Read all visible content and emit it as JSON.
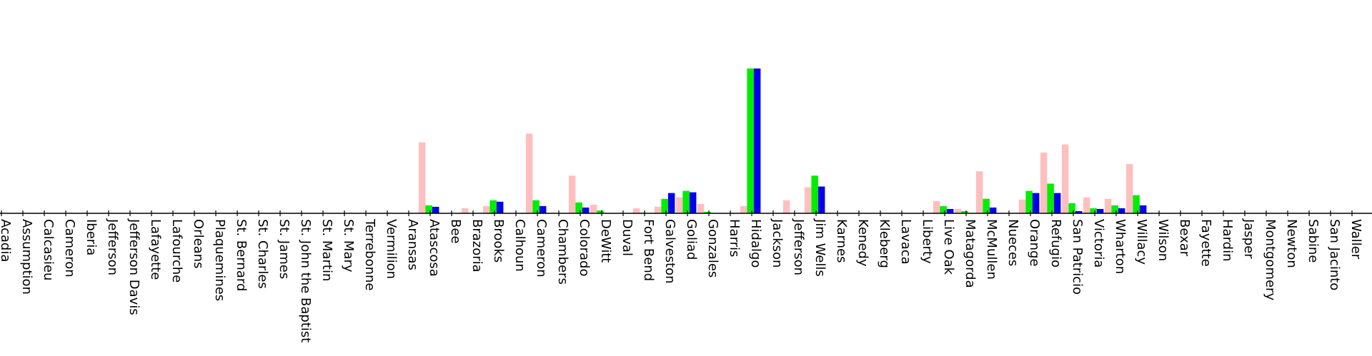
{
  "chart_data": {
    "type": "bar",
    "title": "",
    "xlabel": "",
    "ylabel": "",
    "ylim": [
      0,
      100
    ],
    "grid": false,
    "legend": "none",
    "categories": [
      "Acadia",
      "Assumption",
      "Calcasieu",
      "Cameron",
      "Iberia",
      "Jefferson",
      "Jefferson Davis",
      "Lafayette",
      "Lafourche",
      "Orleans",
      "Plaquemines",
      "St. Bernard",
      "St. Charles",
      "St. James",
      "St. John the Baptist",
      "St. Martin",
      "St. Mary",
      "Terrebonne",
      "Vermilion",
      "Aransas",
      "Atascosa",
      "Bee",
      "Brazoria",
      "Brooks",
      "Calhoun",
      "Cameron",
      "Chambers",
      "Colorado",
      "DeWitt",
      "Duval",
      "Fort Bend",
      "Galveston",
      "Goliad",
      "Gonzales",
      "Harris",
      "Hidalgo",
      "Jackson",
      "Jefferson",
      "Jim Wells",
      "Karnes",
      "Kenedy",
      "Kleberg",
      "Lavaca",
      "Liberty",
      "Live Oak",
      "Matagorda",
      "McMullen",
      "Nueces",
      "Orange",
      "Refugio",
      "San Patricio",
      "Victoria",
      "Wharton",
      "Willacy",
      "Wilson",
      "Bexar",
      "Fayette",
      "Hardin",
      "Jasper",
      "Montgomery",
      "Newton",
      "Sabine",
      "San Jacinto",
      "Waller"
    ],
    "series": [
      {
        "color": "#ffbfbf",
        "values": [
          0,
          0,
          0,
          0,
          0,
          0,
          0,
          0,
          0,
          0,
          0,
          0,
          0,
          0,
          0,
          0,
          0,
          0,
          0,
          49,
          0,
          3.5,
          5,
          0,
          55,
          0,
          26,
          6,
          0,
          3.5,
          4.5,
          11,
          6.5,
          0,
          5,
          0,
          9,
          18,
          0,
          0,
          0,
          0,
          0,
          8.5,
          3,
          29,
          0,
          9.5,
          42,
          47.5,
          11,
          10,
          34,
          0,
          0,
          0,
          0,
          0,
          0,
          0,
          0,
          0,
          0,
          0
        ]
      },
      {
        "color": "#00ee00",
        "values": [
          0,
          0,
          0,
          0,
          0,
          0,
          0,
          0,
          0,
          0,
          0,
          0,
          0,
          0,
          0,
          0,
          0,
          0,
          0,
          5.5,
          0,
          0,
          9,
          0,
          9,
          0,
          7.5,
          2,
          0,
          0.5,
          10,
          15.5,
          1,
          0,
          100,
          0,
          0,
          26,
          0,
          0,
          0,
          0,
          0,
          5,
          1.5,
          10,
          0,
          15.5,
          20.5,
          7,
          3.5,
          5.5,
          12.5,
          0,
          0,
          0,
          0,
          0,
          0,
          0,
          0,
          0,
          0,
          0
        ]
      },
      {
        "color": "#0000ee",
        "values": [
          0,
          0,
          0,
          0,
          0,
          0,
          0,
          0,
          0,
          0,
          0,
          0,
          0,
          0,
          0,
          0,
          0,
          0,
          0,
          4.5,
          0,
          0,
          8,
          0,
          5,
          0,
          4,
          0,
          0,
          0,
          14,
          14.5,
          0,
          0,
          100,
          0,
          0,
          18.5,
          0,
          0,
          0,
          0,
          0,
          3,
          0,
          4,
          0,
          14,
          14,
          1.5,
          3,
          3.5,
          5.5,
          0,
          0,
          0,
          0,
          0,
          0,
          0,
          0,
          0,
          0,
          0
        ]
      }
    ],
    "colors": {
      "axis": "#000000",
      "background": "#ffffff"
    }
  }
}
